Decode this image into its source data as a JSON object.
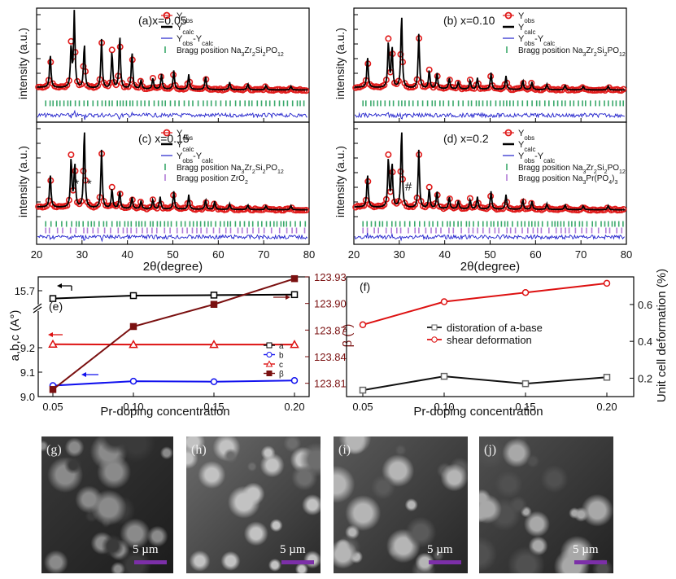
{
  "xrd": {
    "x_axis_label": "2θ(degree)",
    "y_axis_label": "intensity (a.u.)",
    "x_range": [
      20,
      80
    ],
    "x_ticks": [
      20,
      30,
      40,
      50,
      60,
      70,
      80
    ],
    "legend_obs": "Yobs",
    "legend_calc": "Ycalc",
    "legend_diff": "Yobs-Ycalc",
    "panels": [
      {
        "label": "(a)x=0.05",
        "bragg": [
          "Bragg position Na3Zr2Si2PO12"
        ],
        "colors": [
          "#3aa86b"
        ],
        "markers": []
      },
      {
        "label": "(b) x=0.10",
        "bragg": [
          "Bragg position Na3Zr2Si2PO12"
        ],
        "colors": [
          "#3aa86b"
        ],
        "markers": []
      },
      {
        "label": "(c) x=0.15",
        "bragg": [
          "Bragg position Na3Zr2Si2PO12",
          "Bragg position ZrO2"
        ],
        "colors": [
          "#3aa86b",
          "#b07ad6"
        ],
        "markers": [
          "*",
          "*"
        ]
      },
      {
        "label": "(d) x=0.2",
        "bragg": [
          "Bragg position Na3Zr2Si2PO12",
          "Bragg position Na3Pr(PO4)3"
        ],
        "colors": [
          "#3aa86b",
          "#b07ad6"
        ],
        "markers": [
          "#"
        ]
      }
    ]
  },
  "chart_data": [
    {
      "type": "line",
      "panel": "(e)",
      "xlabel": "Pr-doping concentration",
      "ylabel_left": "a,b,c (A°)",
      "ylabel_right": "β (°)",
      "x": [
        0.05,
        0.1,
        0.15,
        0.2
      ],
      "x_ticks": [
        0.05,
        0.1,
        0.15,
        0.2
      ],
      "left_ticks": [
        9.0,
        9.1,
        9.2,
        15.7
      ],
      "right_ticks": [
        123.81,
        123.84,
        123.87,
        123.9,
        123.93
      ],
      "right_range": [
        123.795,
        123.93
      ],
      "series": [
        {
          "name": "a",
          "axis": "left",
          "color": "#000000",
          "marker": "square",
          "values": [
            15.62,
            15.65,
            15.655,
            15.66
          ]
        },
        {
          "name": "b",
          "axis": "left",
          "color": "#1111ee",
          "marker": "circle",
          "values": [
            9.045,
            9.063,
            9.061,
            9.066
          ]
        },
        {
          "name": "c",
          "axis": "left",
          "color": "#dd1111",
          "marker": "triangle",
          "values": [
            9.214,
            9.213,
            9.213,
            9.213
          ]
        },
        {
          "name": "β",
          "axis": "right",
          "color": "#7a1010",
          "marker": "square-filled",
          "values": [
            123.803,
            123.874,
            123.899,
            123.928
          ]
        }
      ]
    },
    {
      "type": "line",
      "panel": "(f)",
      "xlabel": "Pr-doping concentration",
      "ylabel": "Unit cell deformation (%)",
      "x": [
        0.05,
        0.1,
        0.15,
        0.2
      ],
      "x_ticks": [
        0.05,
        0.1,
        0.15,
        0.2
      ],
      "y_ticks": [
        0.2,
        0.4,
        0.6
      ],
      "y_range": [
        0.1,
        0.75
      ],
      "legend_position": "center",
      "series": [
        {
          "name": "distoration of a-base",
          "color": "#111111",
          "marker": "square",
          "values": [
            0.135,
            0.21,
            0.17,
            0.205
          ]
        },
        {
          "name": "shear deformation",
          "color": "#dd1111",
          "marker": "circle",
          "values": [
            0.49,
            0.615,
            0.665,
            0.715
          ]
        }
      ]
    }
  ],
  "sem": {
    "scale_text": "5 µm",
    "panels": [
      "(g)",
      "(h)",
      "(i)",
      "(j)"
    ]
  }
}
